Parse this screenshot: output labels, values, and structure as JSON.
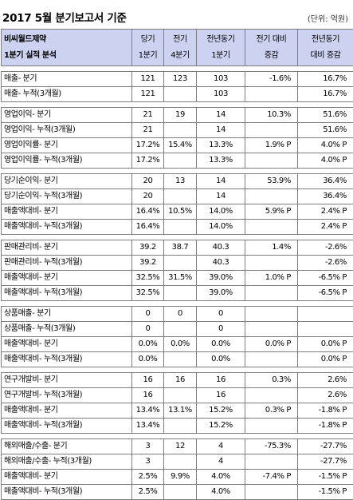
{
  "report": {
    "title": "2017 5월 분기보고서 기준",
    "unit": "(단위: 억원)"
  },
  "table": {
    "company": "비씨월드제약",
    "subtitle": "1분기 실적 분석",
    "headers": [
      [
        "당기",
        "1분기"
      ],
      [
        "전기",
        "4분기"
      ],
      [
        "전년동기",
        "1분기"
      ],
      [
        "전기 대비",
        "증감"
      ],
      [
        "전년동기",
        "대비 증감"
      ]
    ],
    "groups": [
      [
        [
          "매출- 분기",
          "121",
          "123",
          "103",
          "-1.6%",
          "16.7%"
        ],
        [
          "매출- 누적(3개월)",
          "121",
          "",
          "103",
          "",
          "16.7%"
        ]
      ],
      [
        [
          "영업이익- 분기",
          "21",
          "19",
          "14",
          "10.3%",
          "51.6%"
        ],
        [
          "영업이익- 누적(3개월)",
          "21",
          "",
          "14",
          "",
          "51.6%"
        ],
        [
          "영업이익률- 분기",
          "17.2%",
          "15.4%",
          "13.3%",
          "1.9% P",
          "4.0% P"
        ],
        [
          "영업이익률- 누적(3개월)",
          "17.2%",
          "",
          "13.3%",
          "",
          "4.0% P"
        ]
      ],
      [
        [
          "당기순이익- 분기",
          "20",
          "13",
          "14",
          "53.9%",
          "36.4%"
        ],
        [
          "당기순이익- 누적(3개월)",
          "20",
          "",
          "14",
          "",
          "36.4%"
        ],
        [
          "매출액대비- 분기",
          "16.4%",
          "10.5%",
          "14.0%",
          "5.9% P",
          "2.4% P"
        ],
        [
          "매출액대비- 누적(3개월)",
          "16.4%",
          "",
          "14.0%",
          "",
          "2.4% P"
        ]
      ],
      [
        [
          "판매관리비- 분기",
          "39.2",
          "38.7",
          "40.3",
          "1.4%",
          "-2.6%"
        ],
        [
          "판매관리비- 누적(3개월)",
          "39.2",
          "",
          "40.3",
          "",
          "-2.6%"
        ],
        [
          "매출액대비- 분기",
          "32.5%",
          "31.5%",
          "39.0%",
          "1.0% P",
          "-6.5% P"
        ],
        [
          "매출액대비- 누적(3개월)",
          "32.5%",
          "",
          "39.0%",
          "",
          "-6.5% P"
        ]
      ],
      [
        [
          "상품매출- 분기",
          "0",
          "0",
          "0",
          "",
          ""
        ],
        [
          "상품매출- 누적(3개월)",
          "0",
          "",
          "0",
          "",
          ""
        ],
        [
          "매출액대비- 분기",
          "0.0%",
          "0.0%",
          "0.0%",
          "0.0% P",
          "0.0% P"
        ],
        [
          "매출액대비- 누적(3개월)",
          "0.0%",
          "",
          "0.0%",
          "",
          "0.0% P"
        ]
      ],
      [
        [
          "연구개발비- 분기",
          "16",
          "16",
          "16",
          "0.3%",
          "2.6%"
        ],
        [
          "연구개발비- 누적(3개월)",
          "16",
          "",
          "16",
          "",
          "2.6%"
        ],
        [
          "매출액대비- 분기",
          "13.4%",
          "13.1%",
          "15.2%",
          "0.3% P",
          "-1.8% P"
        ],
        [
          "매출액대비- 누적(3개월)",
          "13.4%",
          "",
          "15.2%",
          "",
          "-1.8% P"
        ]
      ],
      [
        [
          "해외매출/수출- 분기",
          "3",
          "12",
          "4",
          "-75.3%",
          "-27.7%"
        ],
        [
          "해외매출/수출- 누적(3개월)",
          "3",
          "",
          "4",
          "",
          "-27.7%"
        ],
        [
          "매출액대비- 분기",
          "2.5%",
          "9.9%",
          "4.0%",
          "-7.4% P",
          "-1.5% P"
        ],
        [
          "매출액대비- 누적(3개월)",
          "2.5%",
          "",
          "4.0%",
          "",
          "-1.5% P"
        ]
      ]
    ]
  }
}
